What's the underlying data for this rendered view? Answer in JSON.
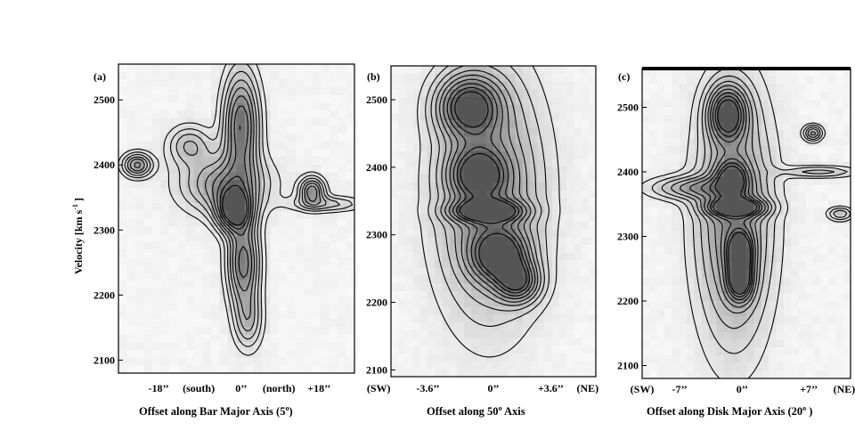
{
  "chart_data": [
    {
      "type": "heatmap",
      "panel_label": "(a)",
      "xlabel_text": "Offset along  Bar Major Axis   (5",
      "xlabel_deg": "o",
      "xlabel_close": ")",
      "ylabel_text": "Velocity   [km s",
      "ylabel_exp": "-1",
      "ylabel_close": " ]",
      "ylim": [
        2080,
        2555
      ],
      "yticks": [
        2100,
        2200,
        2300,
        2400,
        2500
      ],
      "xticks": [
        {
          "label": "-18’’",
          "pos": 0.17
        },
        {
          "label": "(south)",
          "pos": 0.34
        },
        {
          "label": "0’’",
          "pos": 0.52
        },
        {
          "label": "(north)",
          "pos": 0.68
        },
        {
          "label": "+18’’",
          "pos": 0.85
        }
      ],
      "peaks": [
        {
          "x": 0.49,
          "v": 2330,
          "sx": 0.05,
          "sv": 22,
          "a": 1.0
        },
        {
          "x": 0.52,
          "v": 2460,
          "sx": 0.05,
          "sv": 55,
          "a": 0.8
        },
        {
          "x": 0.53,
          "v": 2250,
          "sx": 0.045,
          "sv": 45,
          "a": 0.75
        },
        {
          "x": 0.45,
          "v": 2370,
          "sx": 0.12,
          "sv": 30,
          "a": 0.55
        },
        {
          "x": 0.08,
          "v": 2400,
          "sx": 0.04,
          "sv": 12,
          "a": 0.6
        },
        {
          "x": 0.82,
          "v": 2360,
          "sx": 0.035,
          "sv": 14,
          "a": 0.65
        },
        {
          "x": 0.3,
          "v": 2430,
          "sx": 0.06,
          "sv": 20,
          "a": 0.35
        },
        {
          "x": 0.88,
          "v": 2340,
          "sx": 0.1,
          "sv": 8,
          "a": 0.3
        },
        {
          "x": 0.55,
          "v": 2160,
          "sx": 0.04,
          "sv": 30,
          "a": 0.35
        }
      ]
    },
    {
      "type": "heatmap",
      "panel_label": "(b)",
      "xlabel_text": "Offset along 50",
      "xlabel_deg": "o",
      "xlabel_close": " Axis",
      "ylim": [
        2090,
        2550
      ],
      "yticks": [
        2100,
        2200,
        2300,
        2400,
        2500
      ],
      "xticks": [
        {
          "label": "(SW)",
          "pos": -0.06
        },
        {
          "label": "-3.6’’",
          "pos": 0.18
        },
        {
          "label": "0’’",
          "pos": 0.5
        },
        {
          "label": "+3.6’’",
          "pos": 0.78
        },
        {
          "label": "(NE)",
          "pos": 0.96
        }
      ],
      "peaks": [
        {
          "x": 0.38,
          "v": 2490,
          "sx": 0.1,
          "sv": 30,
          "a": 0.9
        },
        {
          "x": 0.42,
          "v": 2390,
          "sx": 0.09,
          "sv": 25,
          "a": 0.75
        },
        {
          "x": 0.47,
          "v": 2335,
          "sx": 0.11,
          "sv": 10,
          "a": 1.0
        },
        {
          "x": 0.53,
          "v": 2270,
          "sx": 0.09,
          "sv": 25,
          "a": 0.9
        },
        {
          "x": 0.62,
          "v": 2230,
          "sx": 0.07,
          "sv": 20,
          "a": 0.75
        },
        {
          "x": 0.48,
          "v": 2360,
          "sx": 0.17,
          "sv": 120,
          "a": 0.6
        }
      ]
    },
    {
      "type": "heatmap",
      "panel_label": "(c)",
      "xlabel_text": "Offset along Disk Major Axis  (20",
      "xlabel_deg": "o",
      "xlabel_close": " )",
      "ylim": [
        2080,
        2560
      ],
      "yticks": [
        2100,
        2200,
        2300,
        2400,
        2500
      ],
      "xticks": [
        {
          "label": "(SW)",
          "pos": 0.0
        },
        {
          "label": "-7’’",
          "pos": 0.18
        },
        {
          "label": "0’’",
          "pos": 0.48
        },
        {
          "label": "+7’’",
          "pos": 0.8
        },
        {
          "label": "(NE)",
          "pos": 0.97
        }
      ],
      "peaks": [
        {
          "x": 0.41,
          "v": 2490,
          "sx": 0.06,
          "sv": 28,
          "a": 0.95
        },
        {
          "x": 0.43,
          "v": 2390,
          "sx": 0.05,
          "sv": 18,
          "a": 0.7
        },
        {
          "x": 0.45,
          "v": 2345,
          "sx": 0.09,
          "sv": 9,
          "a": 1.0
        },
        {
          "x": 0.47,
          "v": 2275,
          "sx": 0.04,
          "sv": 22,
          "a": 0.95
        },
        {
          "x": 0.47,
          "v": 2230,
          "sx": 0.04,
          "sv": 20,
          "a": 0.85
        },
        {
          "x": 0.44,
          "v": 2330,
          "sx": 0.12,
          "sv": 130,
          "a": 0.6
        },
        {
          "x": 0.25,
          "v": 2375,
          "sx": 0.14,
          "sv": 12,
          "a": 0.45
        },
        {
          "x": 0.82,
          "v": 2460,
          "sx": 0.03,
          "sv": 8,
          "a": 0.5
        },
        {
          "x": 0.85,
          "v": 2400,
          "sx": 0.12,
          "sv": 6,
          "a": 0.3
        },
        {
          "x": 0.95,
          "v": 2335,
          "sx": 0.04,
          "sv": 7,
          "a": 0.35
        }
      ]
    }
  ],
  "colors": {
    "background": "#ffffff",
    "contour": "#000000",
    "ink": "#000000"
  }
}
